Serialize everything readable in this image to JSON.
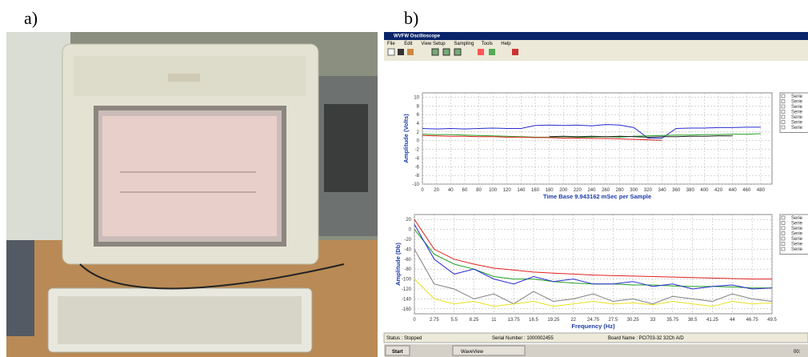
{
  "labels": {
    "a": "a)",
    "b": "b)"
  },
  "window": {
    "title": "WVFW Oscilloscope",
    "menu": [
      "File",
      "Edit",
      "View Setup",
      "Sampling",
      "Tools",
      "Help"
    ],
    "status": [
      "Status : Stopped",
      "Serial Number : 1000002455",
      "Board Name : PCI703-32 32Ch A/D"
    ],
    "taskbar": {
      "start": "Start",
      "app": "WaveView",
      "clock": "00:"
    }
  },
  "chart_data": [
    {
      "type": "line",
      "xlabel": "Time Base 9.943162 mSec per Sample",
      "ylabel": "Amplitude (Volts)",
      "x": [
        0,
        20,
        40,
        60,
        80,
        100,
        120,
        140,
        160,
        180,
        200,
        220,
        240,
        260,
        280,
        300,
        320,
        340,
        360,
        380,
        400,
        420,
        440,
        460,
        480
      ],
      "xlim": [
        0,
        496
      ],
      "ylim": [
        -10,
        11
      ],
      "xticks": [
        0,
        20,
        40,
        60,
        80,
        100,
        120,
        140,
        160,
        180,
        200,
        220,
        240,
        260,
        280,
        300,
        320,
        340,
        360,
        380,
        400,
        420,
        440,
        460,
        480
      ],
      "yticks": [
        10,
        8,
        6,
        4,
        2,
        0,
        -2,
        -4,
        -6,
        -8,
        -10
      ],
      "grid": true,
      "legend": [
        "Serie",
        "Serie",
        "Serie",
        "Serie",
        "Serie",
        "Serie",
        "Serie"
      ],
      "series": [
        {
          "color": "#2a2ad0",
          "values": [
            2.8,
            2.7,
            2.8,
            2.7,
            2.8,
            2.9,
            2.8,
            2.8,
            3.5,
            3.6,
            3.5,
            3.6,
            3.4,
            3.7,
            3.6,
            3.0,
            0.6,
            0.6,
            2.8,
            2.9,
            2.9,
            3.0,
            3.0,
            3.1,
            3.1
          ]
        },
        {
          "color": "#20a020",
          "values": [
            1.5,
            1.4,
            1.4,
            1.3,
            1.2,
            1.1,
            1.0,
            0.9,
            0.8,
            0.8,
            0.9,
            0.8,
            0.8,
            0.9,
            0.8,
            1.0,
            1.1,
            1.2,
            1.3,
            1.3,
            1.4,
            1.4,
            1.5,
            1.5,
            1.6
          ]
        },
        {
          "color": "#e02020",
          "values": [
            1.2,
            1.1,
            1.0,
            1.0,
            0.9,
            0.9,
            0.8,
            0.8,
            0.7,
            0.7,
            0.6,
            0.6,
            0.5,
            0.5,
            0.4,
            0.3,
            0.2,
            0.1,
            null,
            null,
            null,
            null,
            null,
            null,
            null
          ]
        },
        {
          "color": "#202020",
          "values": [
            null,
            null,
            null,
            null,
            null,
            null,
            null,
            null,
            null,
            0.9,
            1.0,
            0.9,
            1.0,
            0.9,
            1.0,
            0.9,
            0.8,
            0.9,
            0.9,
            1.0,
            1.0,
            1.1,
            1.1,
            null,
            null
          ]
        }
      ]
    },
    {
      "type": "line",
      "xlabel": "Frequency (Hz)",
      "ylabel": "Amplitude (Db)",
      "x": [
        0,
        2.75,
        5.5,
        8.25,
        11,
        13.75,
        16.5,
        19.25,
        22,
        24.75,
        27.5,
        30.25,
        33,
        35.75,
        38.5,
        41.25,
        44,
        46.75,
        49.5
      ],
      "xlim": [
        0,
        49.5
      ],
      "ylim": [
        -170,
        30
      ],
      "xticks": [
        0,
        2.75,
        5.5,
        8.25,
        11,
        13.75,
        16.5,
        19.25,
        22,
        24.75,
        27.5,
        30.25,
        33,
        35.75,
        38.5,
        41.25,
        44,
        46.75,
        49.5
      ],
      "yticks": [
        20,
        0,
        -20,
        -40,
        -60,
        -80,
        -100,
        -120,
        -140,
        -160
      ],
      "grid": true,
      "legend": [
        "Serie",
        "Serie",
        "Serie",
        "Serie",
        "Serie",
        "Serie",
        "Serie"
      ],
      "series": [
        {
          "color": "#e02020",
          "values": [
            20,
            -40,
            -60,
            -70,
            -78,
            -82,
            -86,
            -88,
            -90,
            -92,
            -93,
            -94,
            -95,
            -96,
            -97,
            -98,
            -99,
            -100,
            -100
          ]
        },
        {
          "color": "#20a020",
          "values": [
            0,
            -50,
            -70,
            -80,
            -95,
            -100,
            -100,
            -105,
            -108,
            -110,
            -110,
            -112,
            -112,
            -114,
            -115,
            -115,
            -116,
            -118,
            -118
          ]
        },
        {
          "color": "#2a2ad0",
          "values": [
            10,
            -60,
            -90,
            -80,
            -100,
            -110,
            -95,
            -105,
            -100,
            -110,
            -110,
            -105,
            -115,
            -110,
            -120,
            -115,
            -112,
            -120,
            -118
          ]
        },
        {
          "color": "#808080",
          "values": [
            -40,
            -110,
            -120,
            -140,
            -130,
            -150,
            -125,
            -145,
            -140,
            -130,
            -145,
            -140,
            -150,
            -135,
            -140,
            -145,
            -130,
            -140,
            -145
          ]
        },
        {
          "color": "#e8e020",
          "values": [
            -100,
            -140,
            -150,
            -145,
            -155,
            -150,
            -145,
            -155,
            -150,
            -145,
            -150,
            -148,
            -152,
            -145,
            -150,
            -155,
            -145,
            -150,
            -148
          ]
        }
      ]
    }
  ]
}
